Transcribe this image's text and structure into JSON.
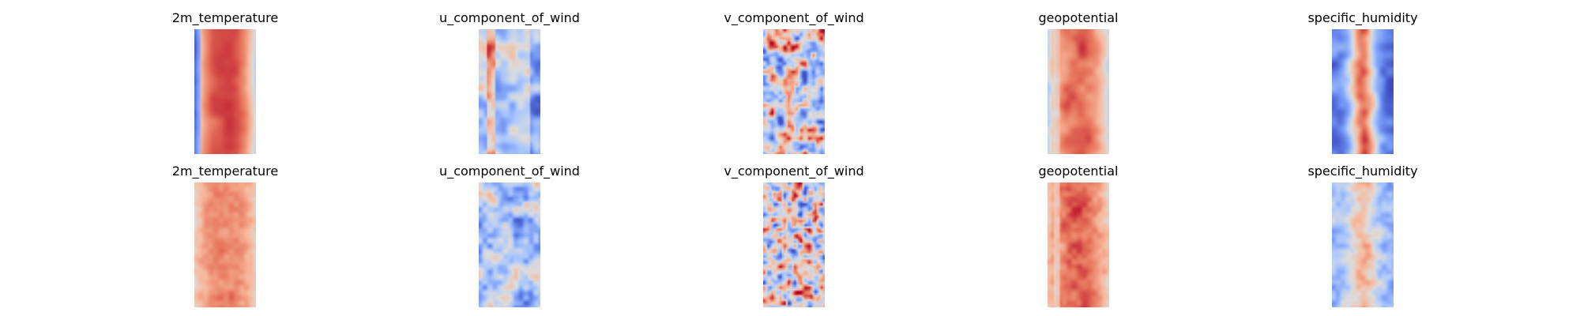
{
  "chart_data": {
    "type": "heatmap",
    "colormap": "coolwarm",
    "colormap_stops": [
      "#3b4cc0",
      "#6f92f3",
      "#aac7fd",
      "#dddcdc",
      "#f7b89c",
      "#e7745b",
      "#b40426"
    ],
    "axes_visible": false,
    "rows": 2,
    "columns": 5,
    "grid_size": [
      60,
      30
    ],
    "panels": [
      {
        "row": 1,
        "title": "2m_temperature",
        "pattern": "temperature",
        "smooth": true,
        "seed": 11
      },
      {
        "row": 1,
        "title": "u_component_of_wind",
        "pattern": "uwind",
        "smooth": true,
        "seed": 12
      },
      {
        "row": 1,
        "title": "v_component_of_wind",
        "pattern": "vwind",
        "smooth": true,
        "seed": 13
      },
      {
        "row": 1,
        "title": "geopotential",
        "pattern": "geopotential",
        "smooth": true,
        "seed": 14
      },
      {
        "row": 1,
        "title": "specific_humidity",
        "pattern": "humidity",
        "smooth": true,
        "seed": 15
      },
      {
        "row": 2,
        "title": "2m_temperature",
        "pattern": "temperature",
        "smooth": false,
        "seed": 21
      },
      {
        "row": 2,
        "title": "u_component_of_wind",
        "pattern": "uwind",
        "smooth": false,
        "seed": 22
      },
      {
        "row": 2,
        "title": "v_component_of_wind",
        "pattern": "vwind",
        "smooth": false,
        "seed": 23
      },
      {
        "row": 2,
        "title": "geopotential",
        "pattern": "geopotential",
        "smooth": false,
        "seed": 24
      },
      {
        "row": 2,
        "title": "specific_humidity",
        "pattern": "humidity",
        "smooth": false,
        "seed": 25
      }
    ]
  }
}
